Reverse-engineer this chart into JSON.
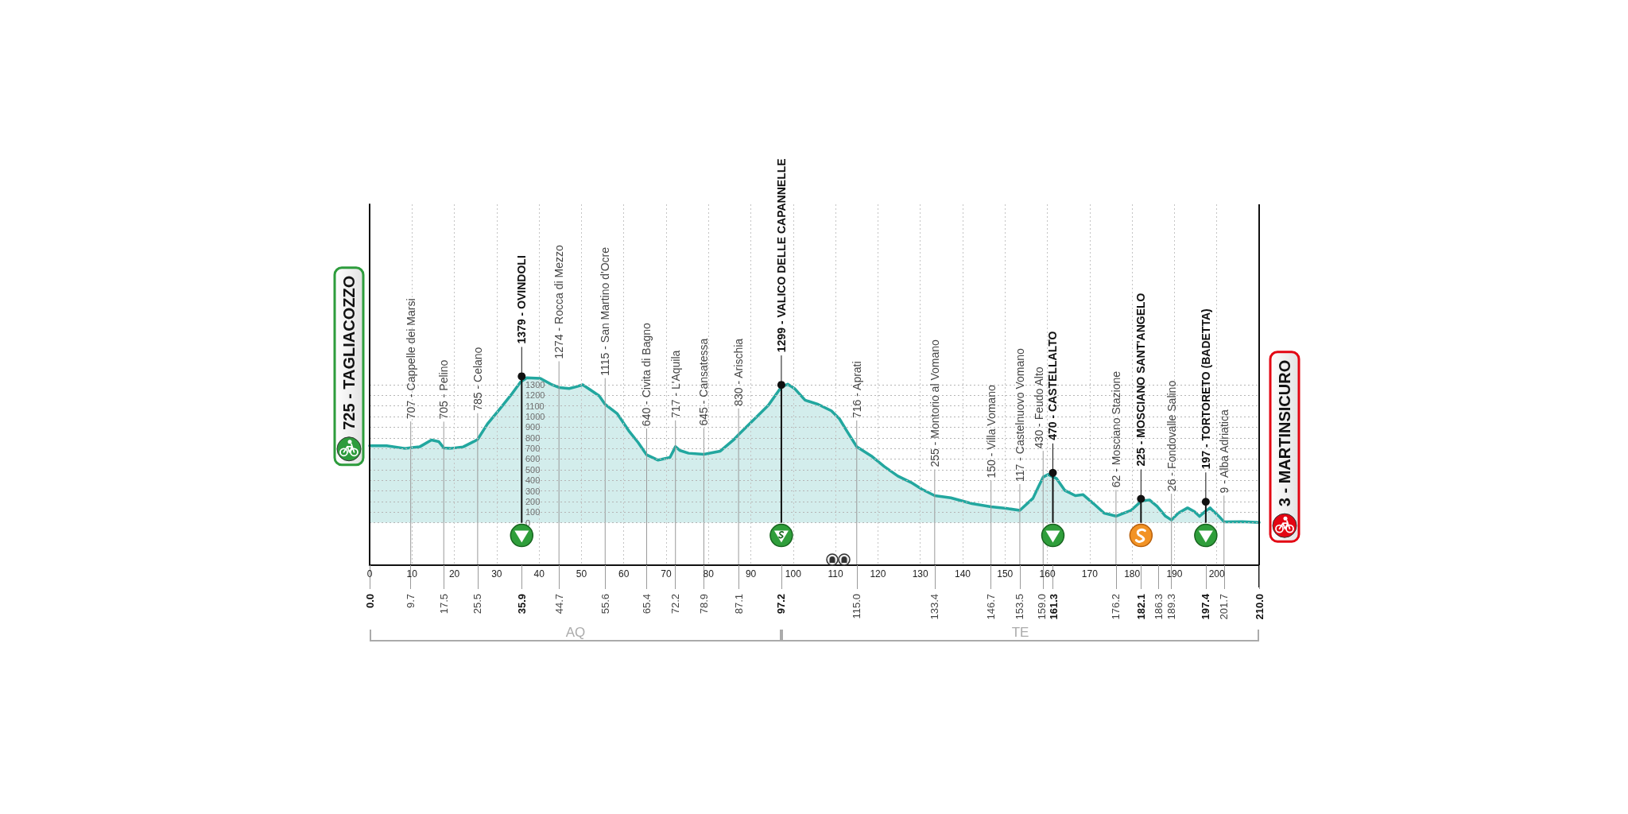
{
  "chart_data": {
    "type": "area",
    "series": [
      {
        "color": "#22a79f",
        "x": [
          0,
          4,
          8.4,
          9.7,
          11.8,
          14.6,
          16.3,
          17.5,
          19,
          22.1,
          24.6,
          25.5,
          27.8,
          30.9,
          33.4,
          35.6,
          37.1,
          40.3,
          42.8,
          44.7,
          47.1,
          48.7,
          50.3,
          52.2,
          54.2,
          55.6,
          58.4,
          61.2,
          63.4,
          65.4,
          68.1,
          70.9,
          72.2,
          73.3,
          75.3,
          78.9,
          82.8,
          85.9,
          87.1,
          90.3,
          94.1,
          97.2,
          98.7,
          100.3,
          102.8,
          105.9,
          109,
          110.9,
          112.8,
          115,
          118.4,
          121.5,
          124.7,
          127.8,
          130.4,
          133.4,
          137.2,
          142.2,
          146.7,
          150.3,
          153.5,
          156.6,
          157.9,
          159,
          160.2,
          162.2,
          164.1,
          166.6,
          168.4,
          170.9,
          173.4,
          176.2,
          179.7,
          182.2,
          184.1,
          185.9,
          187.8,
          189.3,
          190.9,
          193.1,
          194.7,
          195.9,
          197.2,
          198.4,
          200.4,
          201.7,
          206,
          210
        ],
        "values": [
          725,
          725,
          700,
          707,
          715,
          780,
          765,
          705,
          700,
          715,
          765,
          785,
          930,
          1080,
          1205,
          1325,
          1365,
          1360,
          1305,
          1274,
          1265,
          1280,
          1300,
          1250,
          1195,
          1115,
          1030,
          865,
          755,
          640,
          590,
          615,
          717,
          680,
          655,
          645,
          675,
          780,
          830,
          955,
          1105,
          1280,
          1305,
          1265,
          1155,
          1115,
          1055,
          980,
          855,
          716,
          630,
          530,
          440,
          380,
          315,
          255,
          235,
          180,
          150,
          135,
          117,
          230,
          340,
          430,
          455,
          415,
          305,
          255,
          265,
          180,
          90,
          62,
          115,
          205,
          215,
          155,
          65,
          26,
          90,
          140,
          105,
          60,
          105,
          140,
          65,
          9,
          10,
          3
        ]
      },
      {
        "type": "lollipop",
        "color": "#111111",
        "x": [
          35.9,
          97.2,
          161.3,
          182.1,
          197.4
        ],
        "values": [
          1379,
          1299,
          470,
          225,
          197
        ],
        "value_labels": [
          "1379 - OVINDOLI",
          "1299 - VALICO DELLE CAPANNELLE",
          "470 - CASTELLALTO",
          "225 - MOSCIANO SANT'ANGELO",
          "197 - TORTORETO (BADETTA)"
        ]
      }
    ],
    "xlim": [
      0,
      210
    ],
    "xticks": [
      0,
      10,
      20,
      30,
      40,
      50,
      60,
      70,
      80,
      90,
      100,
      110,
      120,
      130,
      140,
      150,
      160,
      170,
      180,
      190,
      200
    ],
    "x2lim": [
      0,
      210
    ],
    "x2ticks": [
      {
        "value": 0,
        "label": "0.0"
      },
      9.7,
      17.5,
      25.5,
      35.9,
      44.7,
      55.6,
      65.4,
      72.2,
      78.9,
      87.1,
      97.2,
      {
        "value": 115,
        "label": "115.0"
      },
      133.4,
      146.7,
      153.5,
      {
        "value": 159,
        "label": "159.0"
      },
      161.3,
      176.2,
      182.1,
      186.3,
      189.3,
      197.4,
      201.7,
      {
        "value": 210,
        "label": "210.0"
      }
    ],
    "ylim": [
      -400,
      3000
    ],
    "yticks": [
      0,
      100,
      200,
      300,
      400,
      500,
      600,
      700,
      800,
      900,
      1000,
      1100,
      1200,
      1300
    ],
    "grid": true,
    "annotations": [
      {
        "text": "725 - TAGLIACOZZO",
        "x": 0,
        "y": 725
      },
      {
        "text": "707 - Cappelle dei Marsi",
        "x": 9.7,
        "y": 707
      },
      {
        "text": "705 - Pelino",
        "x": 17.5,
        "y": 705
      },
      {
        "text": "785 - Celano",
        "x": 25.5,
        "y": 785
      },
      {
        "text": "1274 - Rocca di Mezzo",
        "x": 44.7,
        "y": 1274
      },
      {
        "text": "1115 - San Martino d'Ocre",
        "x": 55.6,
        "y": 1115
      },
      {
        "text": "640 - Civita di Bagno",
        "x": 65.4,
        "y": 640
      },
      {
        "text": "717 - L'Aquila",
        "x": 72.2,
        "y": 717
      },
      {
        "text": "645 - Cansatessa",
        "x": 78.9,
        "y": 645
      },
      {
        "text": "830 - Arischia",
        "x": 87.1,
        "y": 830
      },
      {
        "text": "716 - Aprati",
        "x": 115,
        "y": 716
      },
      {
        "text": "255 - Montorio al Vomano",
        "x": 133.4,
        "y": 255
      },
      {
        "text": "150 - Villa Vomano",
        "x": 146.7,
        "y": 150
      },
      {
        "text": "117 - Castelnuovo Vomano",
        "x": 153.5,
        "y": 117
      },
      {
        "text": "430 - Feudo Alto",
        "x": 159,
        "y": 430
      },
      {
        "text": "62 - Mosciano Stazione",
        "x": 176.2,
        "y": 62
      },
      {
        "text": "26 - Fondovalle Salino",
        "x": 189.3,
        "y": 26
      },
      {
        "text": "9 - Alba Adriatica",
        "x": 201.7,
        "y": 9
      },
      {
        "text": "3 - MARTINSICURO",
        "x": 210,
        "y": 3
      },
      "AQ",
      "TE"
    ]
  }
}
